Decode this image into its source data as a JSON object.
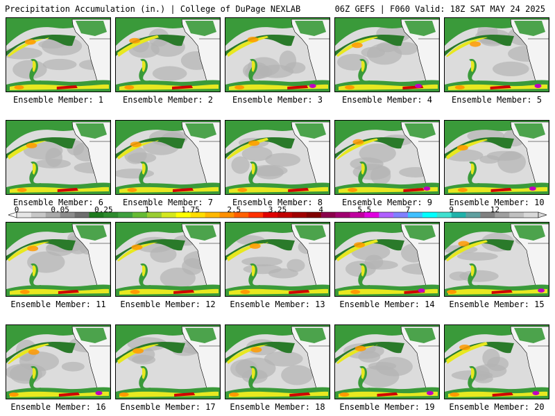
{
  "header": {
    "left_title": "Precipitation Accumulation (in.) | College of DuPage NEXLAB",
    "right_title": "06Z GEFS | F060 Valid: 18Z SAT MAY 24 2025"
  },
  "member_label_prefix": "Ensemble Member: ",
  "members": [
    {
      "label": "Ensemble Member: 1"
    },
    {
      "label": "Ensemble Member: 2"
    },
    {
      "label": "Ensemble Member: 3"
    },
    {
      "label": "Ensemble Member: 4"
    },
    {
      "label": "Ensemble Member: 5"
    },
    {
      "label": "Ensemble Member: 6"
    },
    {
      "label": "Ensemble Member: 7"
    },
    {
      "label": "Ensemble Member: 8"
    },
    {
      "label": "Ensemble Member: 9"
    },
    {
      "label": "Ensemble Member: 10"
    },
    {
      "label": "Ensemble Member: 11"
    },
    {
      "label": "Ensemble Member: 12"
    },
    {
      "label": "Ensemble Member: 13"
    },
    {
      "label": "Ensemble Member: 14"
    },
    {
      "label": "Ensemble Member: 15"
    },
    {
      "label": "Ensemble Member: 16"
    },
    {
      "label": "Ensemble Member: 17"
    },
    {
      "label": "Ensemble Member: 18"
    },
    {
      "label": "Ensemble Member: 19"
    },
    {
      "label": "Ensemble Member: 20"
    }
  ],
  "colorbar": {
    "tick_labels": [
      "0",
      "0.05",
      "0.25",
      "1",
      "1.75",
      "2.5",
      "3.25",
      "4",
      "5.5",
      "7",
      "9",
      "12"
    ],
    "colors": [
      "#e6e6e6",
      "#c8c8c8",
      "#aaaaaa",
      "#8c8c8c",
      "#6e6e6e",
      "#1e7a1e",
      "#2e8b2e",
      "#3fa03f",
      "#66bb33",
      "#9acd32",
      "#d4e81e",
      "#ffff00",
      "#ffdd00",
      "#ffb800",
      "#ff9000",
      "#ff6000",
      "#ff3000",
      "#e00000",
      "#c00000",
      "#a00000",
      "#800000",
      "#8b004b",
      "#a00070",
      "#c000a0",
      "#e000e0",
      "#b060ff",
      "#8080ff",
      "#40c0ff",
      "#00ffff",
      "#40e0d0",
      "#20b2aa",
      "#60a0a0",
      "#808080",
      "#a0a0a0",
      "#c0c0c0",
      "#d8d8d8"
    ],
    "tick_indices": [
      0,
      3,
      6,
      9,
      12,
      15,
      18,
      21,
      24,
      27,
      30,
      33
    ]
  },
  "map_colors": {
    "ocean_light": "#dcdcdc",
    "ocean_mid": "#b4b4b4",
    "land": "#f4f4f4",
    "green": "#3a9a3a",
    "dark_green": "#2a7a2a",
    "yellow": "#e8e820",
    "orange": "#ff9a00",
    "red": "#d00000",
    "magenta": "#c000c0"
  }
}
